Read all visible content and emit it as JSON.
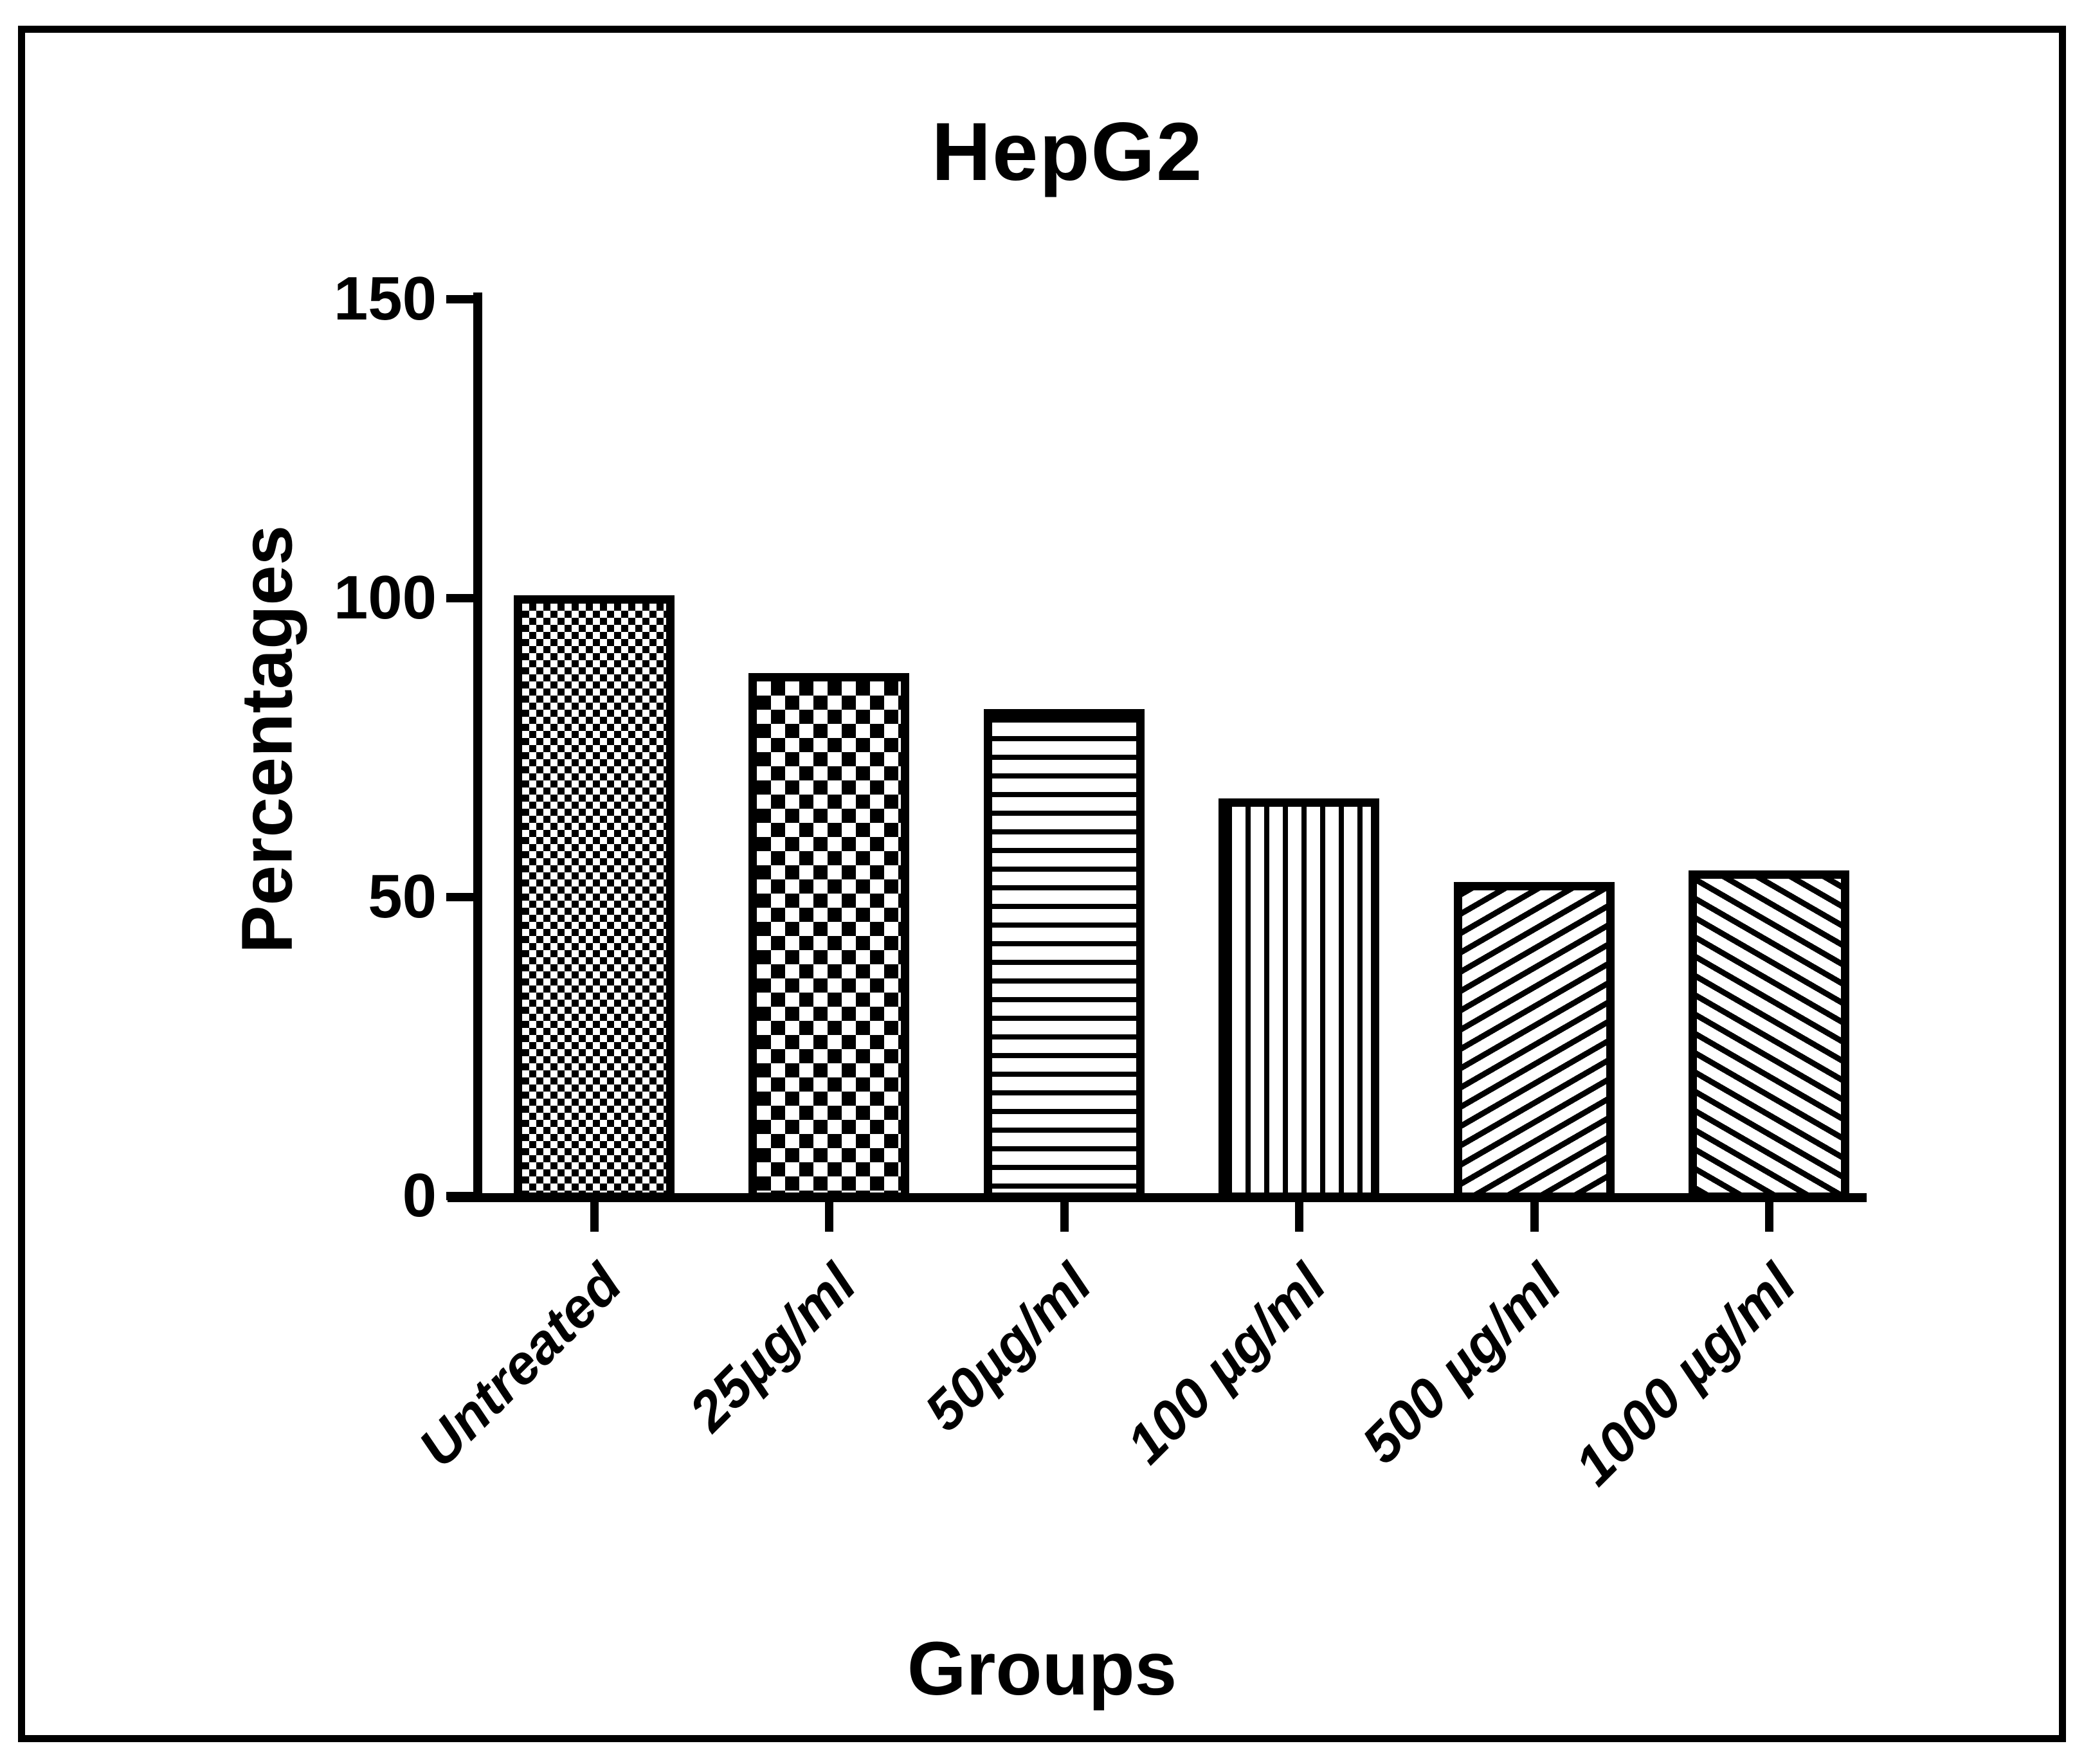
{
  "figure": {
    "background_color": "#ffffff",
    "ink_color": "#000000",
    "border": "thin black rectangle frame around whole figure"
  },
  "chart_data": {
    "type": "bar",
    "title": "HepG2",
    "xlabel": "Groups",
    "ylabel": "Percentages",
    "ylim": [
      0,
      150
    ],
    "yticks": [
      150,
      100,
      50,
      0
    ],
    "categories": [
      "Untreated",
      "25µg/ml",
      "50µg/ml",
      "100 µg/ml",
      "500 µg/ml",
      "1000 µg/ml"
    ],
    "values": [
      100,
      87,
      81,
      66,
      52,
      54
    ],
    "bar_patterns": [
      "checker-fine",
      "checker-coarse",
      "stripes-horizontal",
      "stripes-vertical",
      "diagonal-up",
      "diagonal-down"
    ],
    "bar_fill_color": "#ffffff",
    "bar_line_color": "#000000",
    "grid": false,
    "legend_position": "none",
    "x_tick_label_rotation_deg": -45
  }
}
